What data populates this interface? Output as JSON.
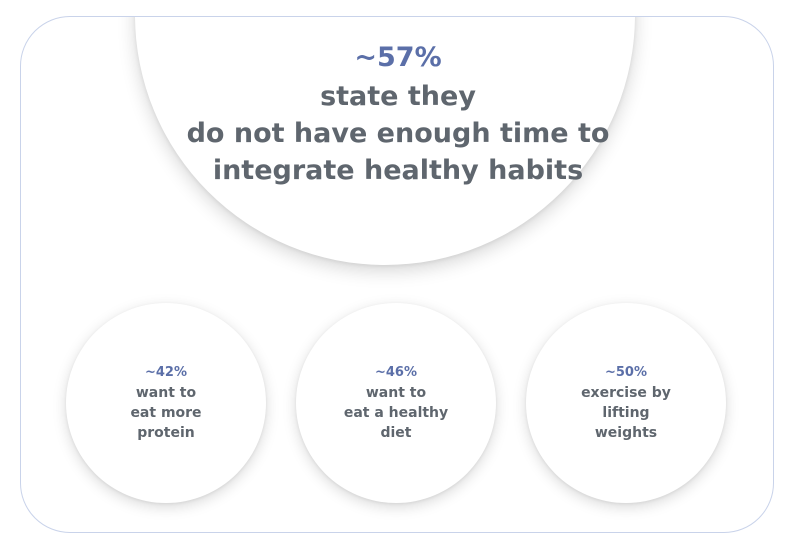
{
  "main_stat": {
    "percent": "~57%",
    "lines": [
      "state they",
      "do not have enough time to",
      "integrate healthy habits"
    ]
  },
  "stats": [
    {
      "percent": "~42%",
      "lines": [
        "want to",
        "eat more",
        "protein"
      ]
    },
    {
      "percent": "~46%",
      "lines": [
        "want to",
        "eat a healthy",
        "diet"
      ]
    },
    {
      "percent": "~50%",
      "lines": [
        "exercise by",
        "lifting",
        "weights"
      ]
    }
  ],
  "colors": {
    "accent": "#5b6fa8",
    "text": "#5f666e",
    "border": "#c9d3ea"
  }
}
